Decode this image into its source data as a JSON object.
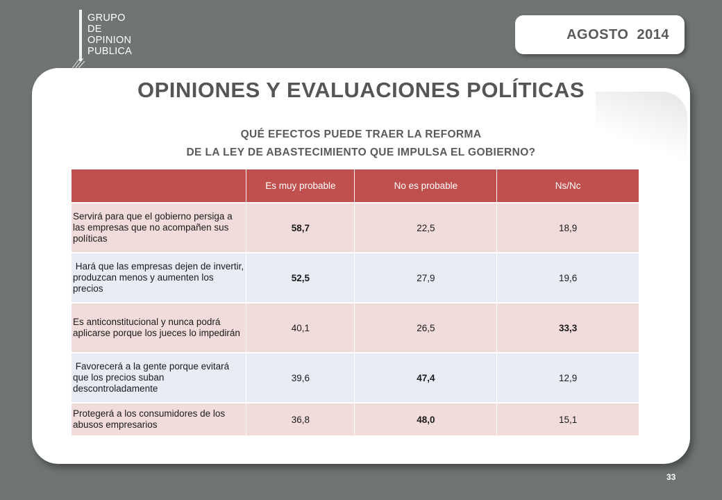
{
  "logo": {
    "lines": [
      "GRUPO",
      "DE",
      "OPINION",
      "PUBLICA"
    ]
  },
  "date": "AGOSTO  2014",
  "title": "OPINIONES Y EVALUACIONES POLÍTICAS",
  "question": {
    "line1": "QUÉ EFECTOS PUEDE TRAER LA REFORMA",
    "line2": "DE LA LEY DE ABASTECIMIENTO QUE IMPULSA EL GOBIERNO?"
  },
  "table": {
    "headers": [
      "",
      "Es muy probable",
      "No es probable",
      "Ns/Nc"
    ],
    "rows": [
      {
        "label": "Servirá para que el gobierno persiga a las empresas que no acompañen sus políticas",
        "values": [
          "58,7",
          "22,5",
          "18,9"
        ]
      },
      {
        "label": " Hará que las empresas dejen de invertir, produzcan menos y aumenten los precios",
        "values": [
          "52,5",
          "27,9",
          "19,6"
        ]
      },
      {
        "label": "Es anticonstitucional y nunca podrá aplicarse porque los jueces lo impedirán",
        "values": [
          "40,1",
          "26,5",
          "33,3"
        ]
      },
      {
        "label": " Favorecerá a la gente porque evitará que los precios suban descontroladamente",
        "values": [
          "39,6",
          "47,4",
          "12,9"
        ]
      },
      {
        "label": "Protegerá a los consumidores de los abusos empresarios",
        "values": [
          "36,8",
          "48,0",
          "15,1"
        ]
      }
    ]
  },
  "page_number": "33",
  "colors": {
    "background": "#6f7474",
    "header": "#c0504d",
    "row_odd": "#f2dcdb",
    "row_even": "#e8ecf4"
  }
}
